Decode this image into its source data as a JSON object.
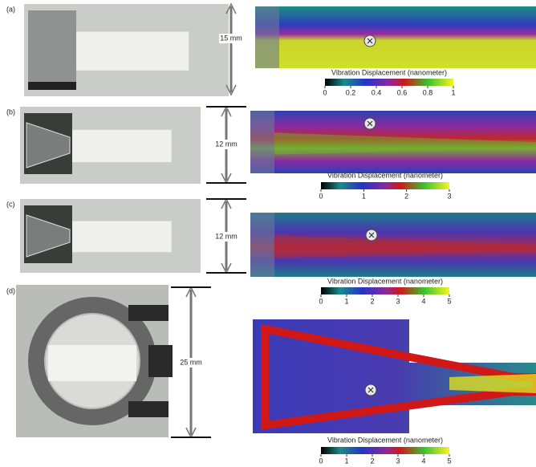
{
  "panels": [
    {
      "label": "(a)",
      "dimension": "15 mm",
      "colorbar": {
        "title": "Vibration Displacement (nanometer)",
        "ticks": [
          0,
          0.2,
          0.4,
          0.6,
          0.8,
          1
        ]
      }
    },
    {
      "label": "(b)",
      "dimension": "12 mm",
      "colorbar": {
        "title": "Vibration Displacement (nanometer)",
        "ticks": [
          0,
          1,
          2,
          3
        ]
      }
    },
    {
      "label": "(c)",
      "dimension": "12 mm",
      "colorbar": {
        "title": "Vibration Displacement (nanometer)",
        "ticks": [
          0,
          1,
          2,
          3,
          4,
          5
        ]
      }
    },
    {
      "label": "(d)",
      "dimension": "25 mm",
      "colorbar": {
        "title": "Vibration Displacement (nanometer)",
        "ticks": [
          0,
          1,
          2,
          3,
          4,
          5
        ]
      }
    }
  ]
}
